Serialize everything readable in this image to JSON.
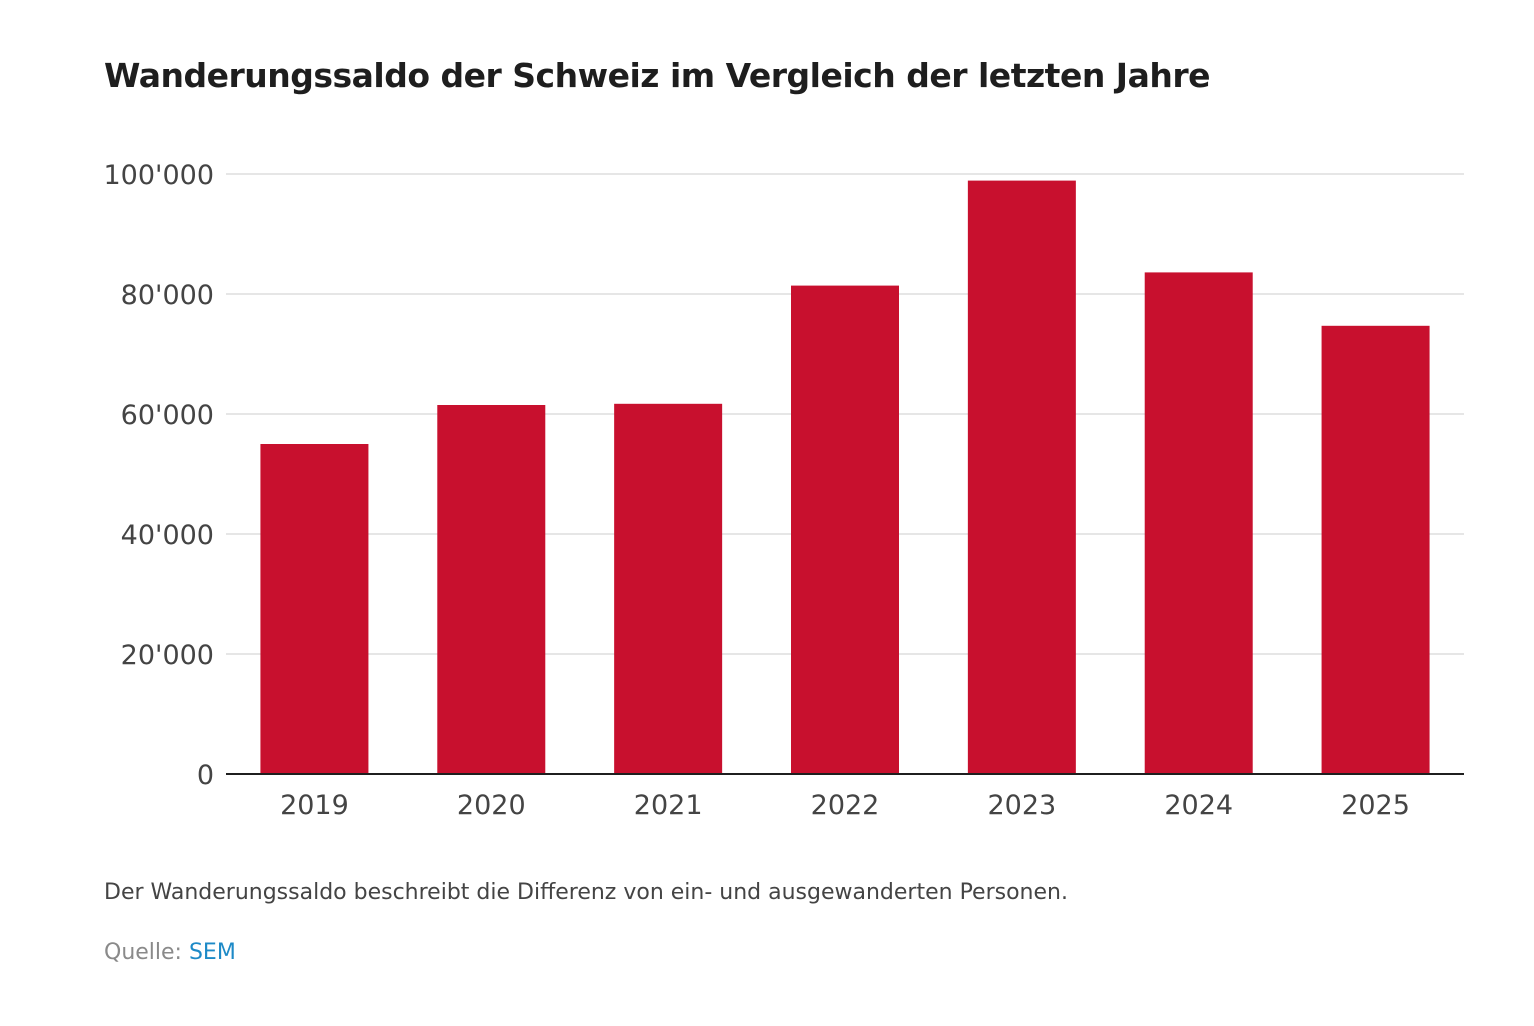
{
  "chart_data": {
    "type": "bar",
    "title": "Wanderungssaldo der Schweiz im Vergleich der letzten Jahre",
    "categories": [
      "2019",
      "2020",
      "2021",
      "2022",
      "2023",
      "2024",
      "2025"
    ],
    "values": [
      55000,
      61500,
      61700,
      81400,
      98900,
      83600,
      74700
    ],
    "ylim": [
      0,
      100000
    ],
    "yticks": [
      0,
      20000,
      40000,
      60000,
      80000,
      100000
    ],
    "ytick_labels": [
      "0",
      "20'000",
      "40'000",
      "60'000",
      "80'000",
      "100'000"
    ],
    "xlabel": "",
    "ylabel": "",
    "grid": true,
    "bar_color": "#c8102e",
    "grid_color": "#e6e6e6",
    "axis_color": "#1f1f1f"
  },
  "note": "Der Wanderungssaldo beschreibt die Differenz von ein- und ausgewanderten Personen.",
  "source": {
    "label": "Quelle:",
    "link_text": "SEM",
    "link_color": "#1d8ac7"
  }
}
